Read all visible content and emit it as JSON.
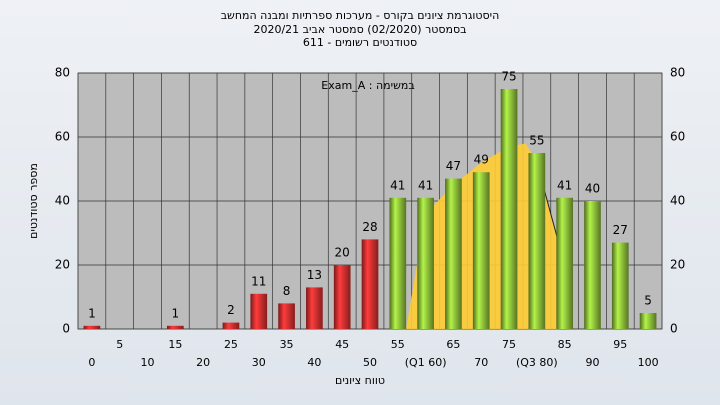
{
  "chart_data": {
    "type": "bar",
    "title": "היסטוגרמת ציונים בקורס - מערכות ספרתיות ומבנה המחשב",
    "subtitle": "בסמסטר  (02/2020)  סמסטר אביב 2020/21",
    "subtitle2": "סטודנטים רשומים - 611",
    "annotation": "במשימה : Exam_A",
    "x_label": "טווח ציונים",
    "y_label": "מספר סטודנטים",
    "categories": [
      "0",
      "5",
      "10",
      "15",
      "20",
      "25",
      "30",
      "35",
      "40",
      "45",
      "50",
      "55",
      "(Q1 60)",
      "65",
      "70",
      "75",
      "(Q3 80)",
      "85",
      "90",
      "95",
      "100"
    ],
    "values": [
      1,
      0,
      0,
      1,
      0,
      2,
      11,
      8,
      13,
      20,
      28,
      41,
      41,
      47,
      49,
      75,
      55,
      41,
      40,
      27,
      5
    ],
    "colors": [
      "#e03030",
      "#e03030",
      "#e03030",
      "#e03030",
      "#e03030",
      "#e03030",
      "#e03030",
      "#e03030",
      "#e03030",
      "#e03030",
      "#e03030",
      "#8fc23a",
      "#8fc23a",
      "#8fc23a",
      "#8fc23a",
      "#8fc23a",
      "#8fc23a",
      "#8fc23a",
      "#8fc23a",
      "#8fc23a",
      "#8fc23a"
    ],
    "curve": {
      "color": "#ffcc33",
      "x": [
        11.3,
        12,
        13,
        14,
        15,
        15.6,
        16,
        17
      ],
      "values": [
        0,
        36,
        45,
        52,
        57,
        58,
        52,
        20
      ]
    },
    "ylim": [
      0,
      80
    ],
    "yticks": [
      0,
      20,
      40,
      60,
      80
    ],
    "grid": true
  }
}
